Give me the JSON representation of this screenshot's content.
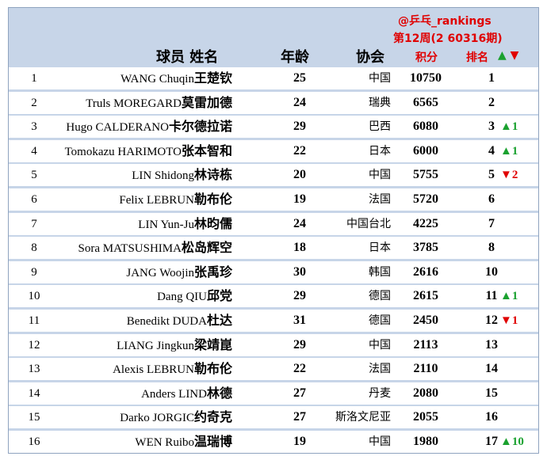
{
  "header": {
    "handle": "@乒乓_rankings",
    "week": "第12周(2 60316期)",
    "name_label": "球员 姓名",
    "age_label": "年龄",
    "assoc_label": "协会",
    "points_label": "积分",
    "rank_label": "排名",
    "up_arrow": "▲",
    "down_arrow": "▼"
  },
  "colors": {
    "background": "#c7d5e8",
    "row": "#ffffff",
    "up": "#1aa12f",
    "down": "#e00000"
  },
  "players": [
    {
      "idx": "1",
      "name_en": "WANG Chuqin",
      "name_cn": "王楚钦",
      "age": "25",
      "assoc": "中国",
      "points": "10750",
      "rank": "1",
      "change": "",
      "dir": ""
    },
    {
      "idx": "2",
      "name_en": "Truls MOREGARD",
      "name_cn": "莫雷加德",
      "age": "24",
      "assoc": "瑞典",
      "points": "6565",
      "rank": "2",
      "change": "",
      "dir": ""
    },
    {
      "idx": "3",
      "name_en": "Hugo CALDERANO",
      "name_cn": "卡尔德拉诺",
      "age": "29",
      "assoc": "巴西",
      "points": "6080",
      "rank": "3",
      "change": "▲1",
      "dir": "up"
    },
    {
      "idx": "4",
      "name_en": "Tomokazu HARIMOTO",
      "name_cn": "张本智和",
      "age": "22",
      "assoc": "日本",
      "points": "6000",
      "rank": "4",
      "change": "▲1",
      "dir": "up"
    },
    {
      "idx": "5",
      "name_en": "LIN Shidong",
      "name_cn": "林诗栋",
      "age": "20",
      "assoc": "中国",
      "points": "5755",
      "rank": "5",
      "change": "▼2",
      "dir": "down"
    },
    {
      "idx": "6",
      "name_en": "Felix LEBRUN",
      "name_cn": "勒布伦",
      "age": "19",
      "assoc": "法国",
      "points": "5720",
      "rank": "6",
      "change": "",
      "dir": ""
    },
    {
      "idx": "7",
      "name_en": "LIN Yun-Ju",
      "name_cn": "林昀儒",
      "age": "24",
      "assoc": "中国台北",
      "points": "4225",
      "rank": "7",
      "change": "",
      "dir": ""
    },
    {
      "idx": "8",
      "name_en": "Sora MATSUSHIMA",
      "name_cn": "松岛辉空",
      "age": "18",
      "assoc": "日本",
      "points": "3785",
      "rank": "8",
      "change": "",
      "dir": ""
    },
    {
      "idx": "9",
      "name_en": "JANG Woojin",
      "name_cn": "张禹珍",
      "age": "30",
      "assoc": "韩国",
      "points": "2616",
      "rank": "10",
      "change": "",
      "dir": ""
    },
    {
      "idx": "10",
      "name_en": "Dang QIU",
      "name_cn": "邱党",
      "age": "29",
      "assoc": "德国",
      "points": "2615",
      "rank": "11",
      "change": "▲1",
      "dir": "up"
    },
    {
      "idx": "11",
      "name_en": "Benedikt DUDA",
      "name_cn": "杜达",
      "age": "31",
      "assoc": "德国",
      "points": "2450",
      "rank": "12",
      "change": "▼1",
      "dir": "down"
    },
    {
      "idx": "12",
      "name_en": "LIANG Jingkun",
      "name_cn": "梁靖崑",
      "age": "29",
      "assoc": "中国",
      "points": "2113",
      "rank": "13",
      "change": "",
      "dir": ""
    },
    {
      "idx": "13",
      "name_en": "Alexis LEBRUN",
      "name_cn": "勒布伦",
      "age": "22",
      "assoc": "法国",
      "points": "2110",
      "rank": "14",
      "change": "",
      "dir": ""
    },
    {
      "idx": "14",
      "name_en": "Anders LIND",
      "name_cn": "林德",
      "age": "27",
      "assoc": "丹麦",
      "points": "2080",
      "rank": "15",
      "change": "",
      "dir": ""
    },
    {
      "idx": "15",
      "name_en": "Darko JORGIC",
      "name_cn": "约奇克",
      "age": "27",
      "assoc": "斯洛文尼亚",
      "points": "2055",
      "rank": "16",
      "change": "",
      "dir": ""
    },
    {
      "idx": "16",
      "name_en": "WEN Ruibo",
      "name_cn": "温瑞博",
      "age": "19",
      "assoc": "中国",
      "points": "1980",
      "rank": "17",
      "change": "▲10",
      "dir": "up"
    }
  ]
}
